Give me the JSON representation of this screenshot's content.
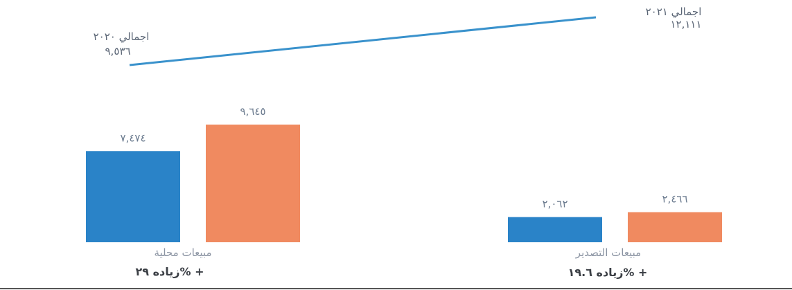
{
  "chart_data": {
    "type": "bar",
    "categories": [
      "مبيعات محلية",
      "مبيعات التصدير"
    ],
    "series": [
      {
        "values": [
          7474,
          2062
        ],
        "value_labels": [
          "٧,٤٧٤",
          "٢,٠٦٢"
        ],
        "color": "#2a83c8"
      },
      {
        "values": [
          9645,
          2466
        ],
        "value_labels": [
          "٩,٦٤٥",
          "٢,٤٦٦"
        ],
        "color": "#f08a60"
      }
    ],
    "changes": [
      "زياده ٢٩% +",
      "زياده ١٩.٦% +"
    ],
    "totals": [
      {
        "line1": "اجمالي ٢٠٢٠",
        "line2": "٩,٥٣٦",
        "value": 9536
      },
      {
        "line1": "اجمالي ٢٠٢١",
        "line2": "١٢,١١١",
        "value": 12111
      }
    ],
    "trend_color": "#3a92cc",
    "ylim": [
      0,
      11000
    ]
  }
}
